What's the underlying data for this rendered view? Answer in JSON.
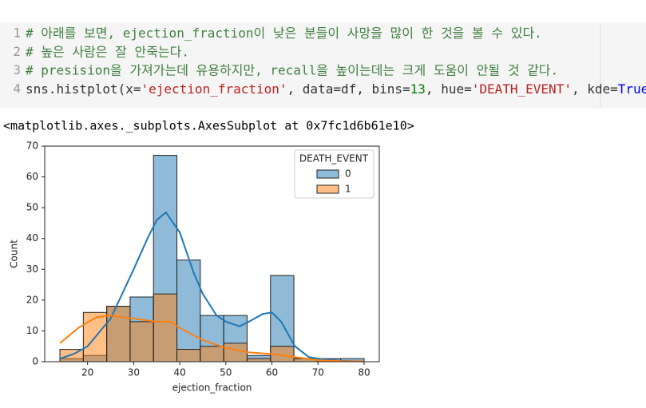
{
  "code_cell": {
    "lines": [
      {
        "number": 1,
        "tokens": [
          {
            "text": "# 아래를 보면, ejection_fraction이 낮은 분들이 사망을 많이 한 것을 볼 수 있다.",
            "color": "#408040"
          }
        ]
      },
      {
        "number": 2,
        "tokens": [
          {
            "text": "# 높은 사람은 잘 안죽는다.",
            "color": "#408040"
          }
        ]
      },
      {
        "number": 3,
        "tokens": [
          {
            "text": "# presision을 가져가는데 유용하지만, recall을 높이는데는 크게 도움이 안될 것 같다.",
            "color": "#408040"
          }
        ]
      },
      {
        "number": 4,
        "tokens": [
          {
            "text": "sns.histplot(x=",
            "color": "#333333"
          },
          {
            "text": "'ejection_fraction'",
            "color": "#ba2121"
          },
          {
            "text": ", data=df, bins=",
            "color": "#333333"
          },
          {
            "text": "13",
            "color": "#008000"
          },
          {
            "text": ", hue=",
            "color": "#333333"
          },
          {
            "text": "'DEATH_EVENT'",
            "color": "#ba2121"
          },
          {
            "text": ", kde=",
            "color": "#333333"
          },
          {
            "text": "True",
            "color": "#0000ff"
          },
          {
            "text": ")",
            "color": "#333333"
          }
        ]
      }
    ]
  },
  "output": {
    "text": "<matplotlib.axes._subplots.AxesSubplot at 0x7fc1d6b61e10>"
  },
  "chart_data": {
    "type": "histogram",
    "xlabel": "ejection_fraction",
    "ylabel": "Count",
    "legend_title": "DEATH_EVENT",
    "legend": "upper right",
    "bins": [
      14,
      19.077,
      24.154,
      29.231,
      34.308,
      39.385,
      44.462,
      49.538,
      54.615,
      59.692,
      64.769,
      69.846,
      74.923,
      80
    ],
    "series": [
      {
        "name": "0",
        "color": "#1f77b4",
        "values": [
          1,
          2,
          18,
          21,
          67,
          33,
          15,
          15,
          2,
          28,
          1,
          1,
          1
        ],
        "kde": {
          "x": [
            14,
            17,
            20,
            25,
            30,
            33,
            35,
            37,
            40,
            43,
            45,
            48,
            50,
            53,
            55,
            58,
            60,
            62,
            65,
            68,
            70,
            75,
            80
          ],
          "values": [
            1,
            2.5,
            5,
            14,
            30,
            40,
            46,
            48.5,
            42,
            29,
            22,
            15,
            13,
            11.5,
            13,
            15.5,
            16,
            13,
            5,
            1.5,
            1,
            0.3,
            0.1
          ]
        }
      },
      {
        "name": "1",
        "color": "#ff7f0e",
        "values": [
          4,
          16,
          18,
          13,
          22,
          4,
          5,
          6,
          1,
          5,
          1,
          0,
          0
        ],
        "kde": {
          "x": [
            14,
            18,
            22,
            25,
            30,
            35,
            38,
            40,
            45,
            50,
            55,
            60,
            65,
            70,
            75,
            80
          ],
          "values": [
            6,
            11,
            14.5,
            15,
            14,
            13,
            13,
            11,
            7,
            4.5,
            3,
            2.5,
            1.5,
            0.5,
            0.2,
            0.1
          ]
        }
      }
    ],
    "xlim": [
      10.7,
      83.3
    ],
    "ylim": [
      0,
      70
    ],
    "xticks": [
      20,
      30,
      40,
      50,
      60,
      70,
      80
    ],
    "yticks": [
      0,
      10,
      20,
      30,
      40,
      50,
      60,
      70
    ]
  }
}
